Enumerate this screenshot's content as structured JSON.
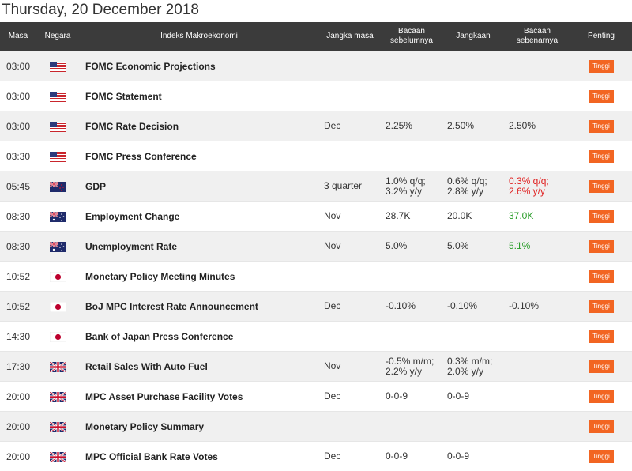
{
  "date_title": "Thursday, 20 December 2018",
  "colors": {
    "badge": "#f26522",
    "header_bg": "#3b3b3b",
    "actual_red": "#e02020",
    "actual_green": "#2a9d2a"
  },
  "headers": {
    "time": "Masa",
    "country": "Negara",
    "event": "Indeks Makroekonomi",
    "period": "Jangka masa",
    "previous": "Bacaan sebelumnya",
    "forecast": "Jangkaan",
    "actual": "Bacaan sebenarnya",
    "importance": "Penting"
  },
  "rows": [
    {
      "time": "03:00",
      "flag": "us-flag-icon",
      "event": "FOMC Economic Projections",
      "period": "",
      "previous": [
        "",
        ""
      ],
      "forecast": [
        "",
        ""
      ],
      "actual": [
        "",
        ""
      ],
      "actual_color": "",
      "importance": "Tinggi"
    },
    {
      "time": "03:00",
      "flag": "us-flag-icon",
      "event": "FOMC Statement",
      "period": "",
      "previous": [
        "",
        ""
      ],
      "forecast": [
        "",
        ""
      ],
      "actual": [
        "",
        ""
      ],
      "actual_color": "",
      "importance": "Tinggi"
    },
    {
      "time": "03:00",
      "flag": "us-flag-icon",
      "event": "FOMC Rate Decision",
      "period": "Dec",
      "previous": [
        "2.25%",
        ""
      ],
      "forecast": [
        "2.50%",
        ""
      ],
      "actual": [
        "2.50%",
        ""
      ],
      "actual_color": "#333333",
      "importance": "Tinggi"
    },
    {
      "time": "03:30",
      "flag": "us-flag-icon",
      "event": "FOMC Press Conference",
      "period": "",
      "previous": [
        "",
        ""
      ],
      "forecast": [
        "",
        ""
      ],
      "actual": [
        "",
        ""
      ],
      "actual_color": "",
      "importance": "Tinggi"
    },
    {
      "time": "05:45",
      "flag": "nz-flag-icon",
      "event": "GDP",
      "period": "3 quarter",
      "previous": [
        "1.0% q/q;",
        "3.2% y/y"
      ],
      "forecast": [
        "0.6% q/q;",
        "2.8% y/y"
      ],
      "actual": [
        "0.3% q/q;",
        "2.6% y/y"
      ],
      "actual_color": "#e02020",
      "importance": "Tinggi"
    },
    {
      "time": "08:30",
      "flag": "au-flag-icon",
      "event": "Employment Change",
      "period": "Nov",
      "previous": [
        "28.7K",
        ""
      ],
      "forecast": [
        "20.0K",
        ""
      ],
      "actual": [
        "37.0K",
        ""
      ],
      "actual_color": "#2a9d2a",
      "importance": "Tinggi"
    },
    {
      "time": "08:30",
      "flag": "au-flag-icon",
      "event": "Unemployment Rate",
      "period": "Nov",
      "previous": [
        "5.0%",
        ""
      ],
      "forecast": [
        "5.0%",
        ""
      ],
      "actual": [
        "5.1%",
        ""
      ],
      "actual_color": "#2a9d2a",
      "importance": "Tinggi"
    },
    {
      "time": "10:52",
      "flag": "jp-flag-icon",
      "event": "Monetary Policy Meeting Minutes",
      "period": "",
      "previous": [
        "",
        ""
      ],
      "forecast": [
        "",
        ""
      ],
      "actual": [
        "",
        ""
      ],
      "actual_color": "",
      "importance": "Tinggi"
    },
    {
      "time": "10:52",
      "flag": "jp-flag-icon",
      "event": "BoJ MPC Interest Rate Announcement",
      "period": "Dec",
      "previous": [
        "-0.10%",
        ""
      ],
      "forecast": [
        "-0.10%",
        ""
      ],
      "actual": [
        "-0.10%",
        ""
      ],
      "actual_color": "#333333",
      "importance": "Tinggi"
    },
    {
      "time": "14:30",
      "flag": "jp-flag-icon",
      "event": "Bank of Japan Press Conference",
      "period": "",
      "previous": [
        "",
        ""
      ],
      "forecast": [
        "",
        ""
      ],
      "actual": [
        "",
        ""
      ],
      "actual_color": "",
      "importance": "Tinggi"
    },
    {
      "time": "17:30",
      "flag": "uk-flag-icon",
      "event": "Retail Sales With Auto Fuel",
      "period": "Nov",
      "previous": [
        "-0.5% m/m;",
        "2.2% y/y"
      ],
      "forecast": [
        "0.3% m/m;",
        "2.0% y/y"
      ],
      "actual": [
        "",
        ""
      ],
      "actual_color": "",
      "importance": "Tinggi"
    },
    {
      "time": "20:00",
      "flag": "uk-flag-icon",
      "event": "MPC Asset Purchase Facility Votes",
      "period": "Dec",
      "previous": [
        "0-0-9",
        ""
      ],
      "forecast": [
        "0-0-9",
        ""
      ],
      "actual": [
        "",
        ""
      ],
      "actual_color": "",
      "importance": "Tinggi"
    },
    {
      "time": "20:00",
      "flag": "uk-flag-icon",
      "event": "Monetary Policy Summary",
      "period": "",
      "previous": [
        "",
        ""
      ],
      "forecast": [
        "",
        ""
      ],
      "actual": [
        "",
        ""
      ],
      "actual_color": "",
      "importance": "Tinggi"
    },
    {
      "time": "20:00",
      "flag": "uk-flag-icon",
      "event": "MPC Official Bank Rate Votes",
      "period": "Dec",
      "previous": [
        "0-0-9",
        ""
      ],
      "forecast": [
        "0-0-9",
        ""
      ],
      "actual": [
        "",
        ""
      ],
      "actual_color": "",
      "importance": "Tinggi"
    }
  ]
}
